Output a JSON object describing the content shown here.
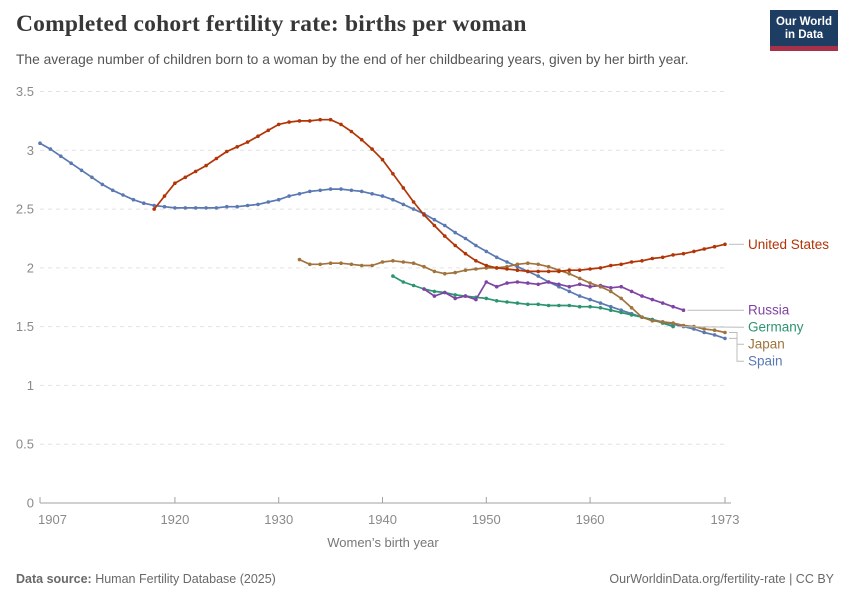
{
  "header": {
    "title": "Completed cohort fertility rate: births per woman",
    "subtitle": "The average number of children born to a woman by the end of her childbearing years, given by her birth year.",
    "logo": {
      "line1": "Our World",
      "line2": "in Data"
    }
  },
  "chart_data": {
    "type": "line",
    "title": "Completed cohort fertility rate: births per woman",
    "xlabel": "Women’s birth year",
    "ylabel": "",
    "x_range": [
      1907,
      1973
    ],
    "y_range": [
      0,
      3.5
    ],
    "x_ticks": [
      1907,
      1920,
      1930,
      1940,
      1950,
      1960,
      1973
    ],
    "y_ticks": [
      0,
      0.5,
      1,
      1.5,
      2,
      2.5,
      3,
      3.5
    ],
    "grid": "horizontal-dashed",
    "legend_position": "right-end-labels",
    "marker": "circle",
    "series": [
      {
        "id": "spain",
        "name": "Spain",
        "color": "#5A79B2",
        "start_year": 1907,
        "values": [
          3.06,
          3.01,
          2.95,
          2.89,
          2.83,
          2.77,
          2.71,
          2.66,
          2.62,
          2.58,
          2.55,
          2.53,
          2.52,
          2.51,
          2.51,
          2.51,
          2.51,
          2.51,
          2.52,
          2.52,
          2.53,
          2.54,
          2.56,
          2.58,
          2.61,
          2.63,
          2.65,
          2.66,
          2.67,
          2.67,
          2.66,
          2.65,
          2.63,
          2.61,
          2.58,
          2.54,
          2.5,
          2.46,
          2.41,
          2.36,
          2.3,
          2.25,
          2.19,
          2.14,
          2.09,
          2.05,
          2.01,
          1.97,
          1.93,
          1.88,
          1.84,
          1.8,
          1.76,
          1.73,
          1.7,
          1.67,
          1.64,
          1.61,
          1.58,
          1.56,
          1.54,
          1.52,
          1.5,
          1.48,
          1.45,
          1.43,
          1.4
        ]
      },
      {
        "id": "germany",
        "name": "Germany",
        "color": "#2E9470",
        "start_year": 1941,
        "values": [
          1.93,
          1.88,
          1.85,
          1.82,
          1.8,
          1.79,
          1.77,
          1.76,
          1.75,
          1.74,
          1.72,
          1.71,
          1.7,
          1.69,
          1.69,
          1.68,
          1.68,
          1.68,
          1.67,
          1.67,
          1.66,
          1.64,
          1.62,
          1.6,
          1.58,
          1.56,
          1.53,
          1.5
        ]
      },
      {
        "id": "russia",
        "name": "Russia",
        "color": "#7F44A3",
        "start_year": 1944,
        "values": [
          1.82,
          1.76,
          1.79,
          1.74,
          1.76,
          1.73,
          1.88,
          1.84,
          1.87,
          1.88,
          1.87,
          1.86,
          1.88,
          1.86,
          1.84,
          1.86,
          1.84,
          1.85,
          1.83,
          1.84,
          1.8,
          1.76,
          1.73,
          1.7,
          1.67,
          1.64
        ]
      },
      {
        "id": "japan",
        "name": "Japan",
        "color": "#A0743C",
        "start_year": 1932,
        "values": [
          2.07,
          2.03,
          2.03,
          2.04,
          2.04,
          2.03,
          2.02,
          2.02,
          2.05,
          2.06,
          2.05,
          2.04,
          2.01,
          1.97,
          1.95,
          1.96,
          1.98,
          1.99,
          2.0,
          2.0,
          2.01,
          2.03,
          2.04,
          2.03,
          2.01,
          1.98,
          1.95,
          1.91,
          1.87,
          1.84,
          1.8,
          1.74,
          1.66,
          1.58,
          1.55,
          1.54,
          1.53,
          1.51,
          1.5,
          1.48,
          1.47,
          1.45
        ]
      },
      {
        "id": "united-states",
        "name": "United States",
        "color": "#B13507",
        "start_year": 1918,
        "values": [
          2.5,
          2.61,
          2.72,
          2.77,
          2.82,
          2.87,
          2.93,
          2.99,
          3.03,
          3.07,
          3.12,
          3.17,
          3.22,
          3.24,
          3.25,
          3.25,
          3.26,
          3.26,
          3.22,
          3.16,
          3.09,
          3.01,
          2.92,
          2.8,
          2.68,
          2.56,
          2.45,
          2.36,
          2.27,
          2.19,
          2.12,
          2.06,
          2.02,
          2.0,
          1.99,
          1.98,
          1.97,
          1.97,
          1.97,
          1.97,
          1.98,
          1.98,
          1.99,
          2.0,
          2.02,
          2.03,
          2.05,
          2.06,
          2.08,
          2.09,
          2.11,
          2.12,
          2.14,
          2.16,
          2.18,
          2.2
        ]
      }
    ]
  },
  "footer": {
    "source_label": "Data source:",
    "source_text": " Human Fertility Database (2025)",
    "credit": "OurWorldinData.org/fertility-rate | CC BY"
  },
  "colors": {
    "background": "#ffffff",
    "logo_bg": "#1d3d63",
    "logo_stripe": "#a63148",
    "title_text": "#373737",
    "subtitle_text": "#555555",
    "tick_label": "#8a8a8a",
    "axis": "#a1a1a1",
    "axis_title": "#777777",
    "grid": "#e2e2e2",
    "connector": "#bcbcbc",
    "footer_text": "#696969"
  }
}
